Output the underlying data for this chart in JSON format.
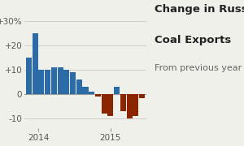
{
  "title_line1": "Change in Russian",
  "title_line2": "Coal Exports",
  "subtitle": "From previous year",
  "bar_values": [
    15,
    25,
    10,
    10,
    11,
    11,
    10,
    9,
    6,
    3,
    1,
    -1,
    -8,
    -9,
    3,
    -7,
    -10,
    -9,
    -1.5
  ],
  "bar_colors_positive": "#2b6ca8",
  "bar_colors_negative": "#8b2500",
  "yticks": [
    -10,
    0,
    10,
    20,
    30
  ],
  "ytick_labels": [
    "-10",
    "0",
    "+10",
    "+20",
    "+30%"
  ],
  "ylim": [
    -14,
    35
  ],
  "xlabel_2014_pos": 1.5,
  "xlabel_2015_pos": 13.0,
  "background_color": "#f0f0eb",
  "grid_color": "#c8c8c8",
  "title_fontsize": 9.5,
  "subtitle_fontsize": 8.0,
  "tick_fontsize": 7.5
}
